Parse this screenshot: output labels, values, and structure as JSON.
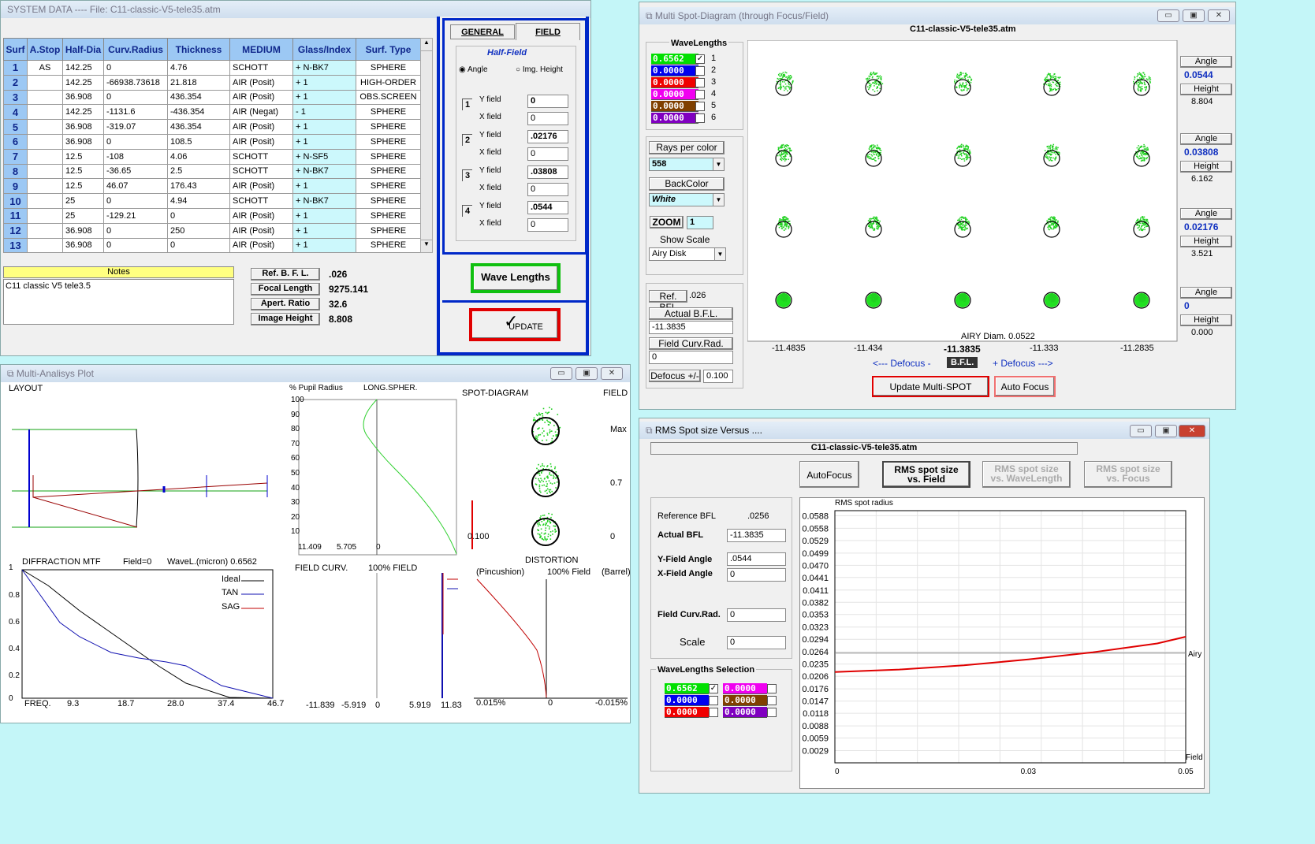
{
  "system": {
    "title": "SYSTEM  DATA  ----  File:  C11-classic-V5-tele35.atm",
    "columns": [
      "Surf",
      "A.Stop",
      "Half-Dia",
      "Curv.Radius",
      "Thickness",
      "MEDIUM",
      "Glass/Index",
      "Surf. Type"
    ],
    "rows": [
      [
        "1",
        "AS",
        "142.25",
        "0",
        "4.76",
        "SCHOTT",
        "+ N-BK7",
        "SPHERE"
      ],
      [
        "2",
        "",
        "142.25",
        "-66938.73618",
        "21.818",
        "AIR (Posit)",
        "+ 1",
        "HIGH-ORDER"
      ],
      [
        "3",
        "",
        "36.908",
        "0",
        "436.354",
        "AIR (Posit)",
        "+ 1",
        "OBS.SCREEN"
      ],
      [
        "4",
        "",
        "142.25",
        "-1131.6",
        "-436.354",
        "AIR (Negat)",
        "- 1",
        "SPHERE"
      ],
      [
        "5",
        "",
        "36.908",
        "-319.07",
        "436.354",
        "AIR (Posit)",
        "+ 1",
        "SPHERE"
      ],
      [
        "6",
        "",
        "36.908",
        "0",
        "108.5",
        "AIR (Posit)",
        "+ 1",
        "SPHERE"
      ],
      [
        "7",
        "",
        "12.5",
        "-108",
        "4.06",
        "SCHOTT",
        "+ N-SF5",
        "SPHERE"
      ],
      [
        "8",
        "",
        "12.5",
        "-36.65",
        "2.5",
        "SCHOTT",
        "+ N-BK7",
        "SPHERE"
      ],
      [
        "9",
        "",
        "12.5",
        "46.07",
        "176.43",
        "AIR (Posit)",
        "+ 1",
        "SPHERE"
      ],
      [
        "10",
        "",
        "25",
        "0",
        "4.94",
        "SCHOTT",
        "+ N-BK7",
        "SPHERE"
      ],
      [
        "11",
        "",
        "25",
        "-129.21",
        "0",
        "AIR (Posit)",
        "+ 1",
        "SPHERE"
      ],
      [
        "12",
        "",
        "36.908",
        "0",
        "250",
        "AIR (Posit)",
        "+ 1",
        "SPHERE"
      ],
      [
        "13",
        "",
        "36.908",
        "0",
        "0",
        "AIR (Posit)",
        "+ 1",
        "SPHERE"
      ]
    ],
    "notes_label": "Notes",
    "notes_text": "C11 classic V5 tele3.5",
    "params": [
      {
        "label": "Ref.  B. F. L.",
        "value": ".026"
      },
      {
        "label": "Focal  Length",
        "value": "9275.141"
      },
      {
        "label": "Apert. Ratio",
        "value": "32.6"
      },
      {
        "label": "Image Height",
        "value": "8.808"
      }
    ],
    "tabs": [
      "GENERAL",
      "FIELD"
    ],
    "half_field": "Half-Field",
    "radio_angle": "Angle",
    "radio_height": "Img. Height",
    "fields": [
      {
        "n": "1",
        "y": "0",
        "x": "0"
      },
      {
        "n": "2",
        "y": ".02176",
        "x": "0"
      },
      {
        "n": "3",
        "y": ".03808",
        "x": "0"
      },
      {
        "n": "4",
        "y": ".0544",
        "x": "0"
      }
    ],
    "y_label": "Y field",
    "x_label": "X field",
    "wave_btn": "Wave Lengths",
    "update_btn": "UPDATE"
  },
  "spot": {
    "title": "Multi Spot-Diagram   (through Focus/Field)",
    "file": "C11-classic-V5-tele35.atm",
    "wl_title": "WaveLengths",
    "wavelengths": [
      {
        "v": "0.6562",
        "c": "#00e000",
        "on": true,
        "n": "1"
      },
      {
        "v": "0.0000",
        "c": "#0000f0",
        "on": false,
        "n": "2"
      },
      {
        "v": "0.0000",
        "c": "#f00000",
        "on": false,
        "n": "3"
      },
      {
        "v": "0.0000",
        "c": "#f000f0",
        "on": false,
        "n": "4"
      },
      {
        "v": "0.0000",
        "c": "#804000",
        "on": false,
        "n": "5"
      },
      {
        "v": "0.0000",
        "c": "#8000c0",
        "on": false,
        "n": "6"
      }
    ],
    "rays_label": "Rays per color",
    "rays": "558",
    "back_label": "BackColor",
    "back": "White",
    "zoom_label": "ZOOM",
    "zoom": "1",
    "scale_label": "Show Scale",
    "scale": "Airy Disk",
    "ref_bfl_label": "Ref.  BFL",
    "ref_bfl": ".026",
    "actual_label": "Actual  B.F.L.",
    "actual": "-11.3835",
    "curv_label": "Field Curv.Rad.",
    "curv": "0",
    "defocus_label": "Defocus +/-",
    "defocus": "0.100",
    "fields": [
      {
        "angle": "0.0544",
        "height": "8.804"
      },
      {
        "angle": "0.03808",
        "height": "6.162"
      },
      {
        "angle": "0.02176",
        "height": "3.521"
      },
      {
        "angle": "0",
        "height": "0.000"
      }
    ],
    "angle_label": "Angle",
    "height_label": "Height",
    "airy": "AIRY Diam. 0.0522",
    "defocus_ticks": [
      "-11.4835",
      "-11.434",
      "-11.3835",
      "-11.333",
      "-11.2835"
    ],
    "defocus_minus": "<---  Defocus  -",
    "bfl_tag": "B.F.L.",
    "defocus_plus": "+ Defocus --->",
    "update": "Update  Multi-SPOT",
    "autofocus": "Auto Focus"
  },
  "analysis": {
    "title": "Multi-Analisys Plot",
    "layout": "LAYOUT",
    "pupil": "% Pupil Radius",
    "longspher": "LONG.SPHER.",
    "pupil_ticks": [
      "100",
      "90",
      "80",
      "70",
      "60",
      "50",
      "40",
      "30",
      "20",
      "10"
    ],
    "ls_xticks": [
      "11.409",
      "5.705",
      "0"
    ],
    "spot_title": "SPOT-DIAGRAM",
    "field_title": "FIELD",
    "field_vals": [
      "Max",
      "0.7",
      "0"
    ],
    "scale": "0.100",
    "mtf_title": "DIFFRACTION  MTF",
    "mtf_field": "Field=0",
    "mtf_wave": "WaveL.(micron)  0.6562",
    "mtf_y": [
      "1",
      "0.8",
      "0.6",
      "0.4",
      "0.2",
      "0"
    ],
    "mtf_x": [
      "FREQ.",
      "9.3",
      "18.7",
      "28.0",
      "37.4",
      "46.7"
    ],
    "legend": [
      "Ideal",
      "TAN",
      "SAG"
    ],
    "fc_title": "FIELD CURV.",
    "fc_field": "100% FIELD",
    "fc_x": [
      "-11.839",
      "-5.919",
      "0",
      "5.919",
      "11.83"
    ],
    "dist_title": "DISTORTION",
    "pincushion": "(Pincushion)",
    "dist_field": "100% Field",
    "barrel": "(Barrel)",
    "dist_x": [
      "0.015%",
      "0",
      "-0.015%"
    ]
  },
  "rms": {
    "title": "RMS Spot size Versus ....",
    "file": "C11-classic-V5-tele35.atm",
    "autofocus": "AutoFocus",
    "b_field": [
      "RMS spot size",
      "vs. Field"
    ],
    "b_wave": [
      "RMS spot size",
      "vs. WaveLength"
    ],
    "b_focus": [
      "RMS spot size",
      "vs. Focus"
    ],
    "ref_label": "Reference  BFL",
    "ref": ".0256",
    "actual_label": "Actual  BFL",
    "actual": "-11.3835",
    "yfa_label": "Y-Field Angle",
    "yfa": ".0544",
    "xfa_label": "X-Field Angle",
    "xfa": "0",
    "curv_label": "Field Curv.Rad.",
    "curv": "0",
    "scale_label": "Scale",
    "scale": "0",
    "wl_title": "WaveLengths Selection",
    "wavelengths": [
      {
        "v": "0.6562",
        "c": "#00e000",
        "on": true
      },
      {
        "v": "0.0000",
        "c": "#f000f0",
        "on": false
      },
      {
        "v": "0.0000",
        "c": "#0000f0",
        "on": false
      },
      {
        "v": "0.0000",
        "c": "#804000",
        "on": false
      },
      {
        "v": "0.0000",
        "c": "#f00000",
        "on": false
      },
      {
        "v": "0.0000",
        "c": "#8000c0",
        "on": false
      }
    ]
  },
  "chart_data": {
    "type": "line",
    "title": "RMS spot radius",
    "xlabel": "Field",
    "yticks": [
      "0.0588",
      "0.0558",
      "0.0529",
      "0.0499",
      "0.0470",
      "0.0441",
      "0.0411",
      "0.0382",
      "0.0353",
      "0.0323",
      "0.0294",
      "0.0264",
      "0.0235",
      "0.0206",
      "0.0176",
      "0.0147",
      "0.0118",
      "0.0088",
      "0.0059",
      "0.0029"
    ],
    "xticks": [
      "0",
      "0.03",
      "0.05"
    ],
    "xlim": [
      0,
      0.0544
    ],
    "ylim": [
      0,
      0.06
    ],
    "airy_label": "Airy",
    "airy_value": 0.0261,
    "grid": true,
    "series": [
      {
        "x": [
          0,
          0.01,
          0.02,
          0.03,
          0.04,
          0.05,
          0.0544
        ],
        "y": [
          0.0216,
          0.0222,
          0.0232,
          0.0246,
          0.0263,
          0.0284,
          0.03
        ],
        "color": "#e00000"
      }
    ]
  }
}
